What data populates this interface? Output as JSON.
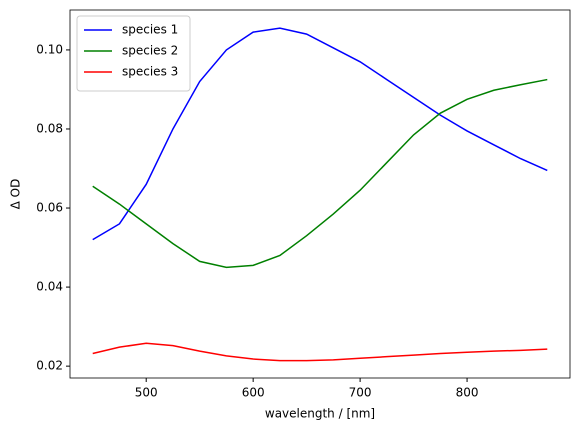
{
  "chart_data": {
    "type": "line",
    "xlabel": "wavelength / [nm]",
    "ylabel": "Δ OD",
    "x": [
      450,
      475,
      500,
      525,
      550,
      575,
      600,
      625,
      650,
      675,
      700,
      725,
      750,
      775,
      800,
      825,
      850,
      875
    ],
    "series": [
      {
        "name": "species 1",
        "color": "#0000ff",
        "values": [
          0.052,
          0.056,
          0.066,
          0.08,
          0.092,
          0.1,
          0.1045,
          0.1055,
          0.104,
          0.1005,
          0.097,
          0.0925,
          0.088,
          0.0835,
          0.0795,
          0.076,
          0.0725,
          0.0695
        ]
      },
      {
        "name": "species 2",
        "color": "#008000",
        "values": [
          0.0655,
          0.061,
          0.056,
          0.051,
          0.0465,
          0.045,
          0.0455,
          0.048,
          0.053,
          0.0585,
          0.0645,
          0.0715,
          0.0785,
          0.084,
          0.0875,
          0.0898,
          0.0912,
          0.0925
        ]
      },
      {
        "name": "species 3",
        "color": "#ff0000",
        "values": [
          0.0232,
          0.0248,
          0.0258,
          0.0252,
          0.0238,
          0.0226,
          0.0218,
          0.0214,
          0.0214,
          0.0216,
          0.022,
          0.0224,
          0.0228,
          0.0232,
          0.0235,
          0.0238,
          0.024,
          0.0243
        ]
      }
    ],
    "xlim": [
      428.75,
      896.25
    ],
    "xticks": [
      500,
      600,
      700,
      800
    ],
    "ylim": [
      0.017,
      0.1101
    ],
    "yticks": [
      {
        "value": 0.02,
        "label": "0.02"
      },
      {
        "value": 0.04,
        "label": "0.04"
      },
      {
        "value": 0.06,
        "label": "0.06"
      },
      {
        "value": 0.08,
        "label": "0.08"
      },
      {
        "value": 0.1,
        "label": "0.10"
      }
    ],
    "legend": "upper left",
    "grid": false
  }
}
